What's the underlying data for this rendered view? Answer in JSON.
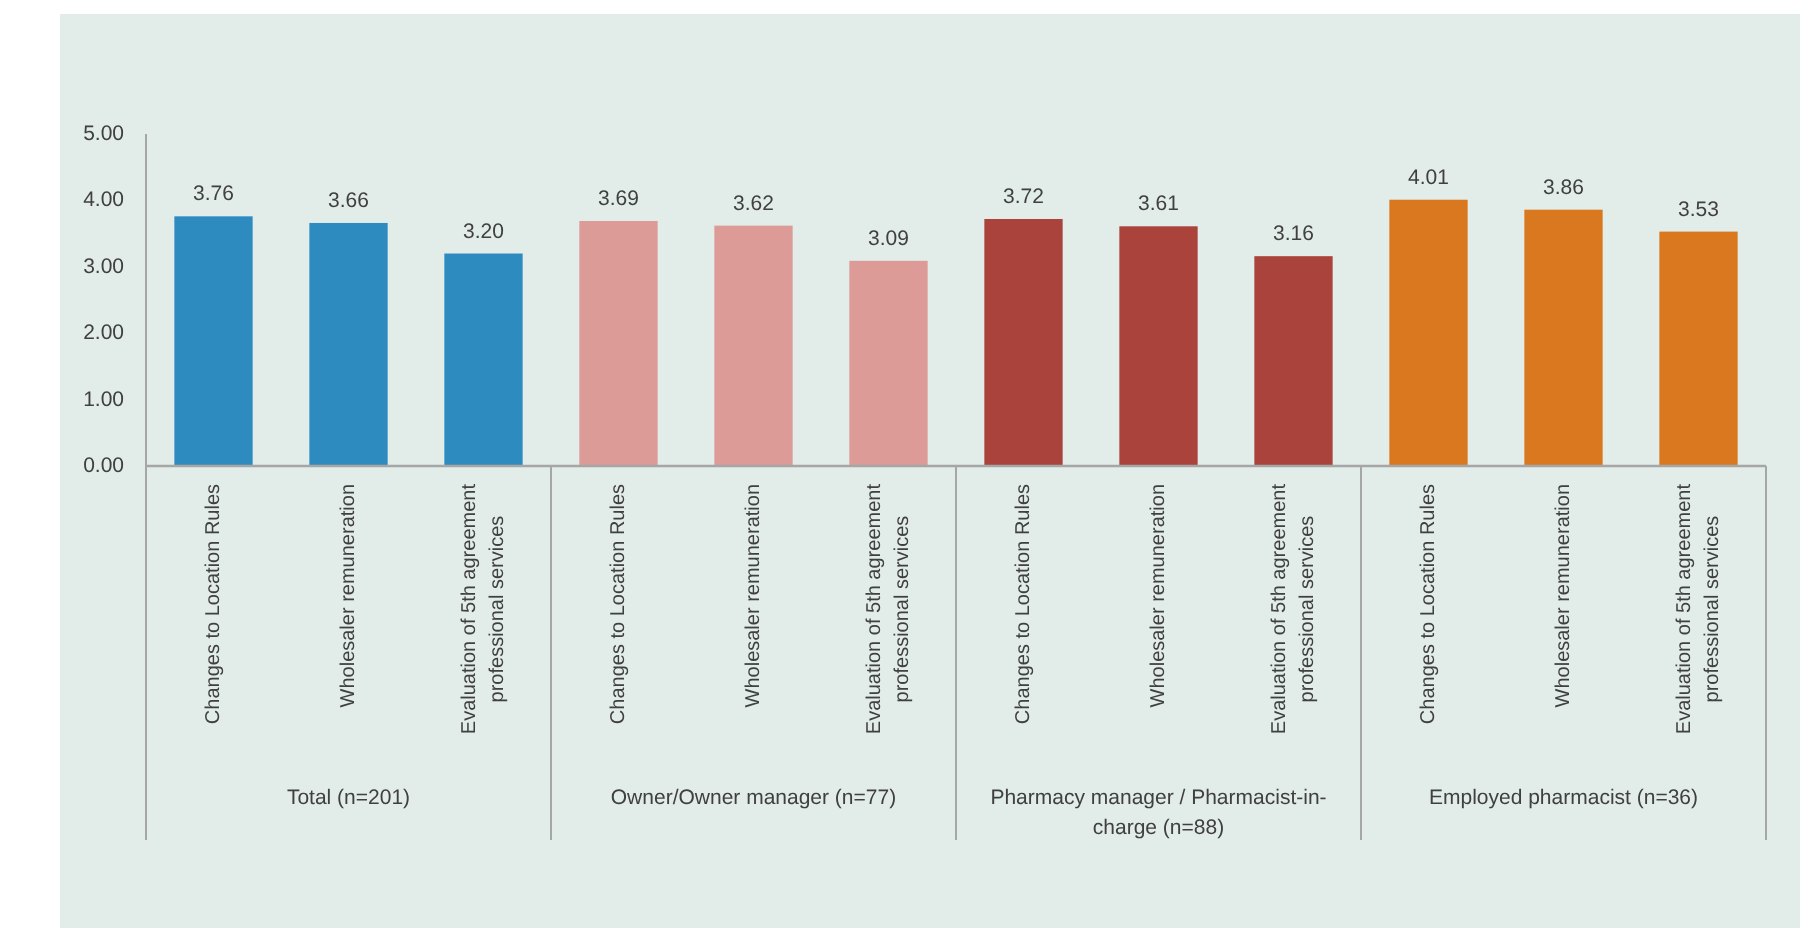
{
  "chart_data": {
    "type": "bar",
    "categories": [
      "Changes to Location Rules",
      "Wholesaler remuneration",
      "Evaluation of 5th agreement professional services",
      "Changes to Location Rules",
      "Wholesaler remuneration",
      "Evaluation of 5th agreement professional services",
      "Changes to Location Rules",
      "Wholesaler remuneration",
      "Evaluation of 5th agreement professional services",
      "Changes to Location Rules",
      "Wholesaler remuneration",
      "Evaluation of 5th agreement professional services"
    ],
    "series": [
      {
        "color": "#2e8bc0",
        "values": [
          3.76,
          3.66,
          3.2,
          null,
          null,
          null,
          null,
          null,
          null,
          null,
          null,
          null
        ],
        "value_labels": [
          "3.76",
          "3.66",
          "3.20",
          null,
          null,
          null,
          null,
          null,
          null,
          null,
          null,
          null
        ]
      },
      {
        "color": "#dc9b97",
        "values": [
          null,
          null,
          null,
          3.69,
          3.62,
          3.09,
          null,
          null,
          null,
          null,
          null,
          null
        ],
        "value_labels": [
          null,
          null,
          null,
          "3.69",
          "3.62",
          "3.09",
          null,
          null,
          null,
          null,
          null,
          null
        ]
      },
      {
        "color": "#a9433b",
        "values": [
          null,
          null,
          null,
          null,
          null,
          null,
          3.72,
          3.61,
          3.16,
          null,
          null,
          null
        ],
        "value_labels": [
          null,
          null,
          null,
          null,
          null,
          null,
          "3.72",
          "3.61",
          "3.16",
          null,
          null,
          null
        ]
      },
      {
        "color": "#d9781e",
        "values": [
          null,
          null,
          null,
          null,
          null,
          null,
          null,
          null,
          null,
          4.01,
          3.86,
          3.53
        ],
        "value_labels": [
          null,
          null,
          null,
          null,
          null,
          null,
          null,
          null,
          null,
          "4.01",
          "3.86",
          "3.53"
        ]
      }
    ],
    "annotations": [
      "Total (n=201)",
      "Owner/Owner manager (n=77)",
      "Pharmacy manager / Pharmacist-in-charge (n=88)",
      "Employed pharmacist (n=36)"
    ],
    "ylim": [
      0,
      5
    ],
    "yticks": [
      {
        "value": 0,
        "label": "0.00"
      },
      {
        "value": 1,
        "label": "1.00"
      },
      {
        "value": 2,
        "label": "2.00"
      },
      {
        "value": 3,
        "label": "3.00"
      },
      {
        "value": 4,
        "label": "4.00"
      },
      {
        "value": 5,
        "label": "5.00"
      }
    ]
  }
}
